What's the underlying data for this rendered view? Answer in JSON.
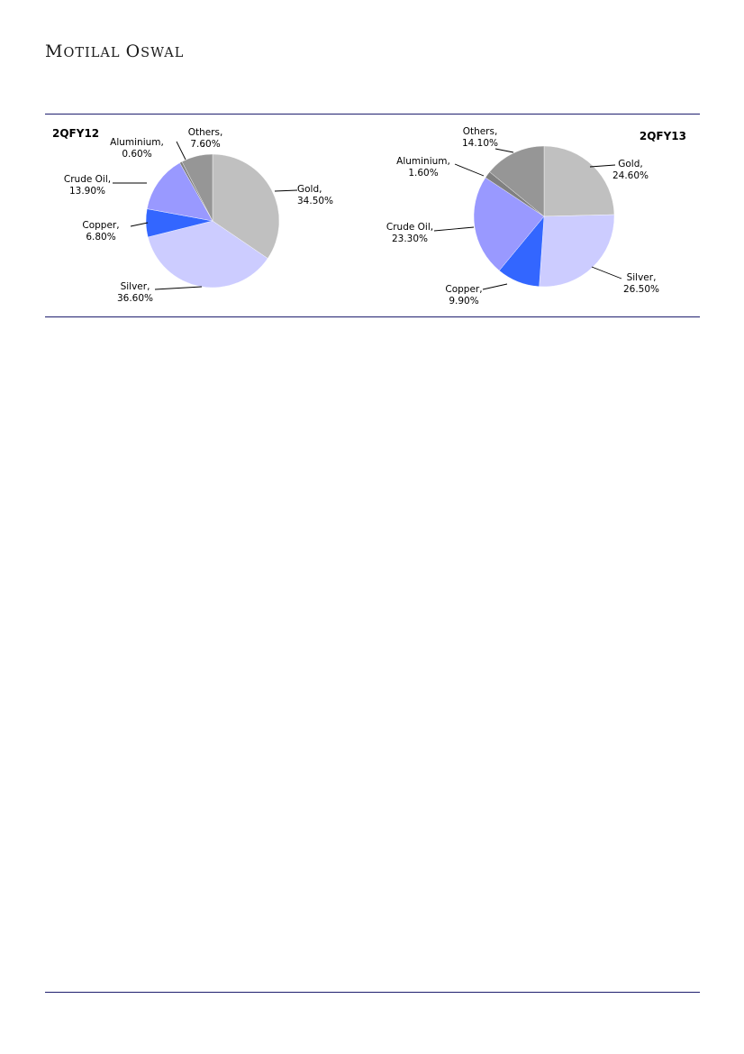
{
  "header": {
    "brand_name": "Motilal Oswal",
    "brand_parts": [
      {
        "big": "M",
        "small": "OTILAL"
      },
      {
        "big": "O",
        "small": "SWAL"
      }
    ]
  },
  "chart_data": [
    {
      "type": "pie",
      "title": "2QFY12",
      "slices": [
        {
          "label": "Gold",
          "value": 34.5,
          "value_label": "34.50%",
          "color": "#c0c0c0"
        },
        {
          "label": "Silver",
          "value": 36.6,
          "value_label": "36.60%",
          "color": "#ccccff"
        },
        {
          "label": "Copper",
          "value": 6.8,
          "value_label": "6.80%",
          "color": "#3366ff"
        },
        {
          "label": "Crude Oil",
          "value": 13.9,
          "value_label": "13.90%",
          "color": "#9999ff"
        },
        {
          "label": "Aluminium",
          "value": 0.6,
          "value_label": "0.60%",
          "color": "#808080"
        },
        {
          "label": "Others",
          "value": 7.6,
          "value_label": "7.60%",
          "color": "#969696"
        }
      ]
    },
    {
      "type": "pie",
      "title": "2QFY13",
      "slices": [
        {
          "label": "Gold",
          "value": 24.6,
          "value_label": "24.60%",
          "color": "#c0c0c0"
        },
        {
          "label": "Silver",
          "value": 26.5,
          "value_label": "26.50%",
          "color": "#ccccff"
        },
        {
          "label": "Copper",
          "value": 9.9,
          "value_label": "9.90%",
          "color": "#3366ff"
        },
        {
          "label": "Crude Oil",
          "value": 23.3,
          "value_label": "23.30%",
          "color": "#9999ff"
        },
        {
          "label": "Aluminium",
          "value": 1.6,
          "value_label": "1.60%",
          "color": "#808080"
        },
        {
          "label": "Others",
          "value": 14.1,
          "value_label": "14.10%",
          "color": "#969696"
        }
      ]
    }
  ]
}
